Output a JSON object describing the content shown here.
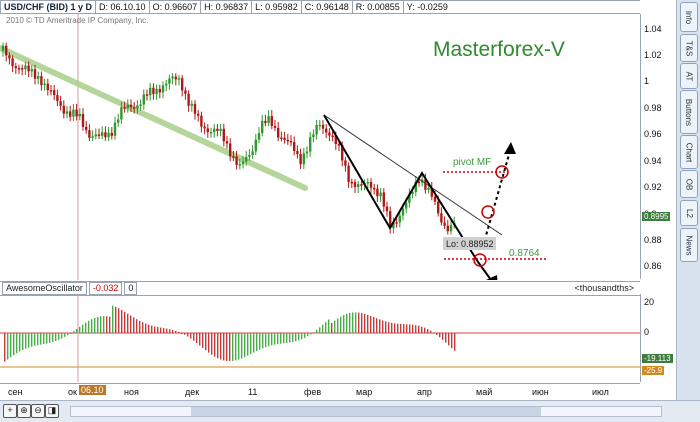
{
  "header": {
    "symbol": "USD/CHF (BID) 1 y D",
    "date": "D: 06.10.10",
    "open": "O: 0.96607",
    "high": "H: 0.96837",
    "low": "L: 0.95982",
    "close": "C: 0.96148",
    "range": "R: 0.00855",
    "change": "Y: -0.0259"
  },
  "copyright": "2010 © TD Ameritrade IP Company, Inc.",
  "brand": "Masterforex-V",
  "annotations": {
    "pivot": "pivot MF",
    "lo": "Lo: 0.88952",
    "target": "0.8764"
  },
  "price_axis": {
    "ticks": [
      "1.04",
      "1.02",
      "1",
      "0.98",
      "0.96",
      "0.94",
      "0.92",
      "0.9",
      "0.88",
      "0.86"
    ],
    "current": "0.8995"
  },
  "oscillator": {
    "name": "AwesomeOscillator",
    "value": "-0.032",
    "second": "0",
    "units": "<thousandths>",
    "ticks": [
      "20",
      "0"
    ],
    "label_green": "-19.113",
    "label_orange": "-25.9"
  },
  "time_axis": {
    "labels": [
      "сен",
      "ок",
      "ноя",
      "дек",
      "11",
      "фев",
      "мар",
      "апр",
      "май",
      "июн",
      "июл"
    ],
    "cursor": "06.10"
  },
  "right_tabs": [
    "Info",
    "T&S",
    "AT",
    "Buttons",
    "Chart",
    "OB",
    "L2",
    "News"
  ],
  "colors": {
    "up": "#2e9a2e",
    "down": "#b01818",
    "trend": "#a8d08a"
  }
}
